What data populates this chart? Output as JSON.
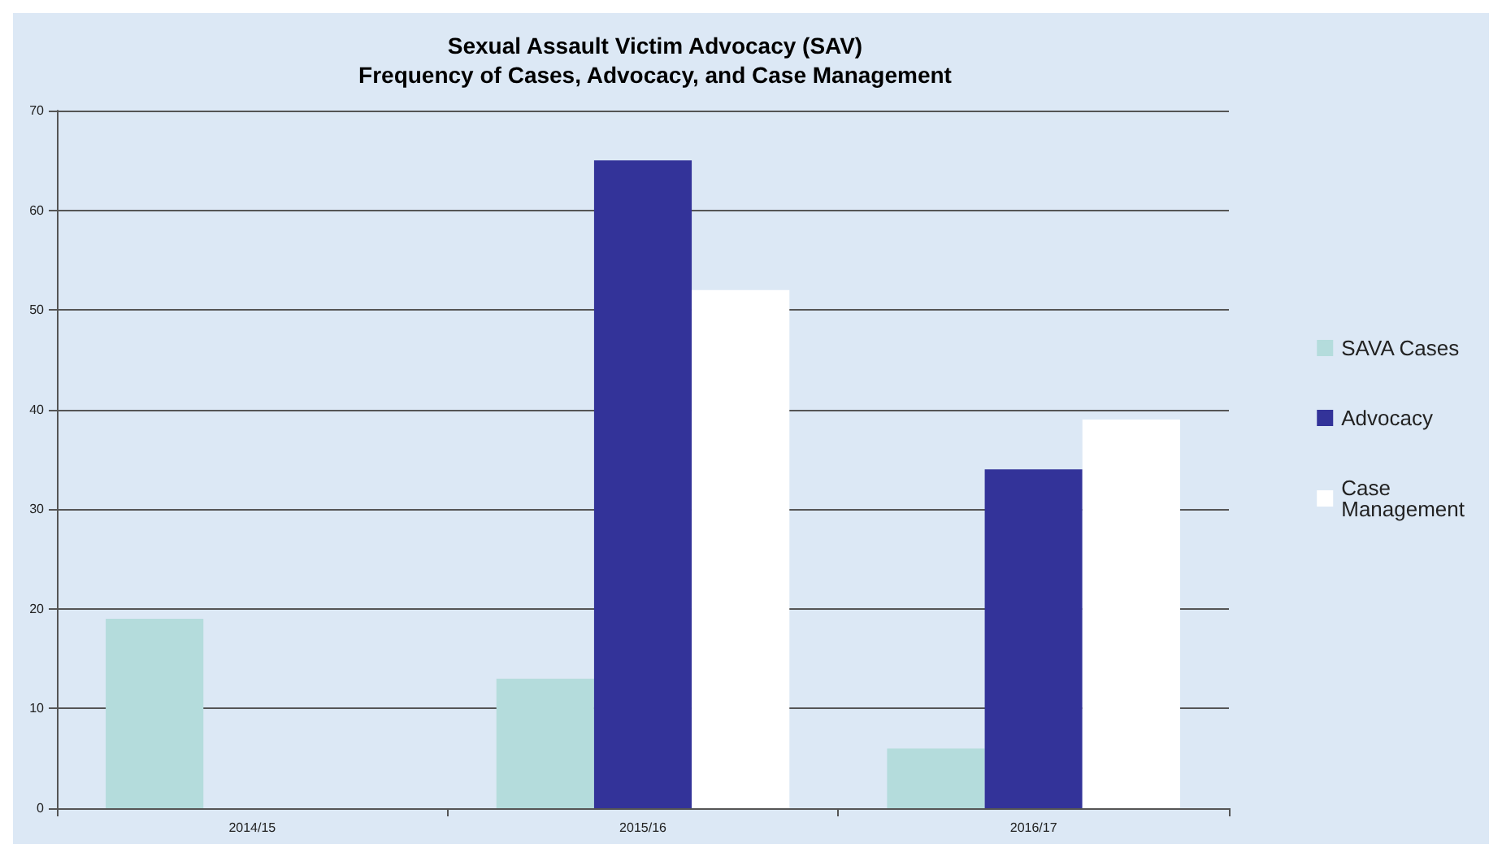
{
  "chart_data": {
    "type": "bar",
    "title": "Sexual Assault Victim Advocacy (SAV)\nFrequency of Cases, Advocacy, and Case Management",
    "categories": [
      "2014/15",
      "2015/16",
      "2016/17"
    ],
    "series": [
      {
        "name": "SAVA Cases",
        "color": "#b4dcdc",
        "values": [
          19,
          13,
          6
        ]
      },
      {
        "name": "Advocacy",
        "color": "#333399",
        "values": [
          null,
          65,
          34
        ]
      },
      {
        "name": "Case Management",
        "color": "#ffffff",
        "values": [
          null,
          52,
          39
        ]
      }
    ],
    "ylim": [
      0,
      70
    ],
    "yticks": [
      0,
      10,
      20,
      30,
      40,
      50,
      60,
      70
    ],
    "grid": "y",
    "legend": "right"
  }
}
